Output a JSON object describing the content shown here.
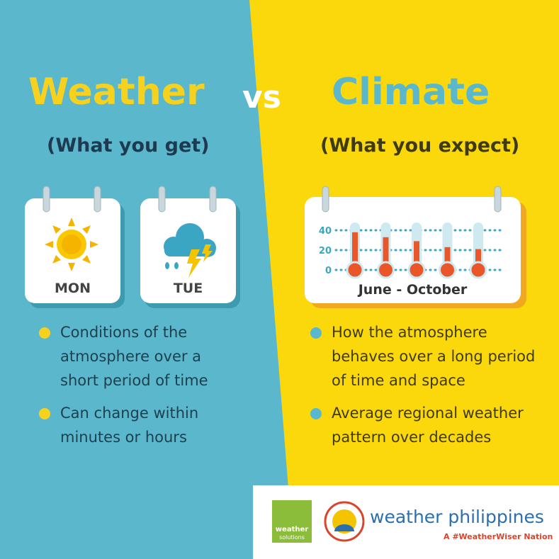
{
  "header": {
    "left_title": "Weather",
    "vs": "vs",
    "right_title": "Climate",
    "left_subtitle": "(What you get)",
    "right_subtitle": "(What you expect)"
  },
  "calendars": [
    {
      "day": "MON"
    },
    {
      "day": "TUE"
    }
  ],
  "thermometer": {
    "ylim": [
      0,
      40
    ],
    "yticks": [
      0,
      20,
      40
    ],
    "values": [
      38,
      33,
      29,
      23,
      21
    ],
    "label": "June - October"
  },
  "weather_points": [
    "Conditions of the atmosphere over a short period of time",
    "Can change within minutes or hours"
  ],
  "climate_points": [
    "How the atmosphere behaves over a long period of time and space",
    "Average regional weather pattern over decades"
  ],
  "footer": {
    "logo_line1": "weather",
    "logo_line2": "solutions",
    "brand": "weather philippines",
    "tagline": "A #WeatherWiser Nation"
  }
}
